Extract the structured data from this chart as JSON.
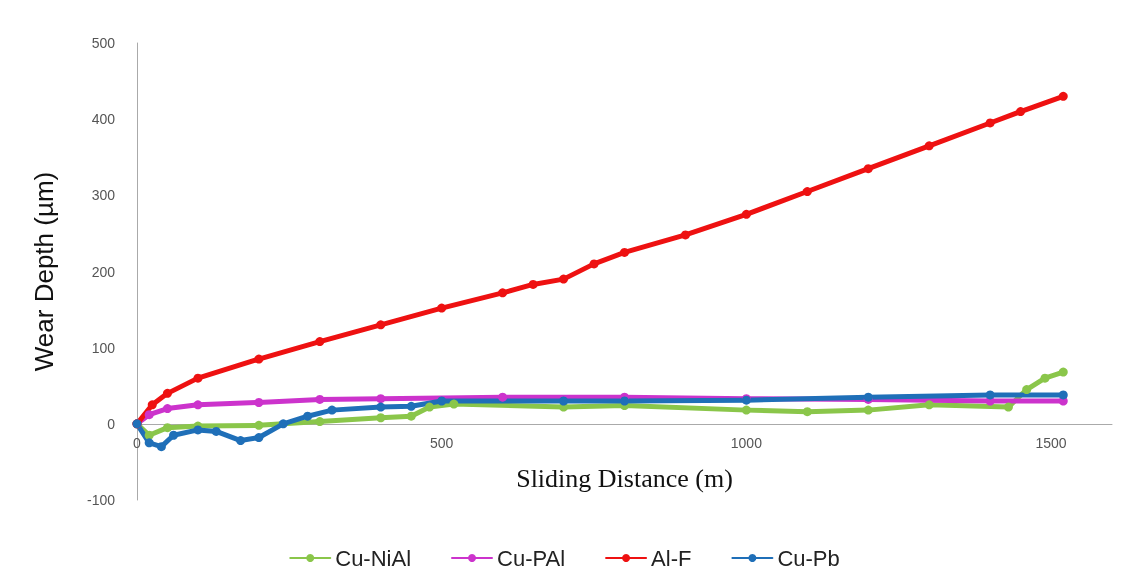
{
  "chart_data": {
    "type": "line",
    "xlabel": "Sliding Distance (m)",
    "ylabel": "Wear Depth (µm)",
    "xlim": [
      0,
      1600
    ],
    "xticks": [
      0,
      500,
      1000,
      1500
    ],
    "ylim": [
      -100,
      500
    ],
    "yticks": [
      -100,
      0,
      100,
      200,
      300,
      400,
      500
    ],
    "grid": false,
    "legend": "bottom",
    "marker": "circle",
    "line_style": "solid",
    "series": [
      {
        "name": "Cu-NiAl",
        "color": "#8ac64a",
        "x": [
          0,
          20,
          50,
          100,
          200,
          300,
          400,
          450,
          480,
          520,
          700,
          800,
          1000,
          1100,
          1200,
          1300,
          1430,
          1460,
          1490,
          1520
        ],
        "values": [
          0,
          -15,
          -5,
          -3,
          -2,
          3,
          8,
          10,
          22,
          26,
          22,
          24,
          18,
          16,
          18,
          25,
          22,
          45,
          60,
          68
        ]
      },
      {
        "name": "Cu-PAl",
        "color": "#cc33cc",
        "x": [
          0,
          20,
          50,
          100,
          200,
          300,
          400,
          600,
          800,
          1000,
          1200,
          1400,
          1520
        ],
        "values": [
          0,
          12,
          20,
          25,
          28,
          32,
          33,
          35,
          35,
          33,
          32,
          30,
          30
        ]
      },
      {
        "name": "Al-F",
        "color": "#ee1111",
        "x": [
          0,
          25,
          50,
          100,
          200,
          300,
          400,
          500,
          600,
          650,
          700,
          750,
          800,
          900,
          1000,
          1100,
          1200,
          1300,
          1400,
          1450,
          1520
        ],
        "values": [
          0,
          25,
          40,
          60,
          85,
          108,
          130,
          152,
          172,
          183,
          190,
          210,
          225,
          248,
          275,
          305,
          335,
          365,
          395,
          410,
          430
        ]
      },
      {
        "name": "Cu-Pb",
        "color": "#1f6fb8",
        "x": [
          0,
          20,
          40,
          60,
          100,
          130,
          170,
          200,
          240,
          280,
          320,
          400,
          450,
          500,
          700,
          800,
          1000,
          1200,
          1400,
          1520
        ],
        "values": [
          0,
          -25,
          -30,
          -15,
          -8,
          -10,
          -22,
          -18,
          0,
          10,
          18,
          22,
          23,
          30,
          30,
          30,
          31,
          35,
          38,
          38
        ]
      }
    ]
  }
}
